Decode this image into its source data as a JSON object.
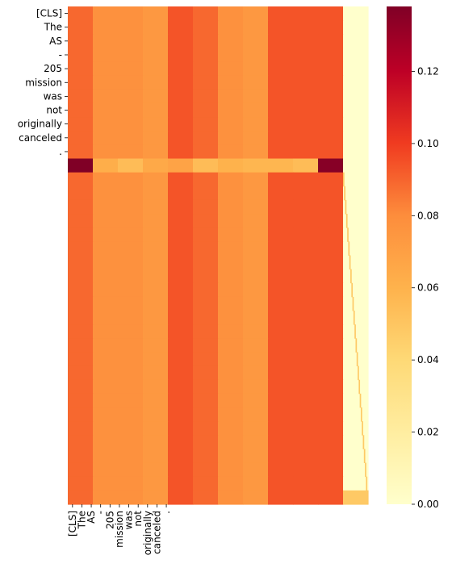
{
  "chart_data": {
    "type": "heatmap",
    "title": "",
    "xlabel": "",
    "ylabel": "",
    "row_labels": [
      "[CLS]",
      "The",
      "AS",
      "-",
      "205",
      "mission",
      "was",
      "not",
      "originally",
      "canceled",
      "."
    ],
    "col_labels": [
      "[CLS]",
      "The",
      "AS",
      "-",
      "205",
      "mission",
      "was",
      "not",
      "originally",
      "canceled",
      "."
    ],
    "n_rows": 36,
    "n_cols": 12,
    "colorbar": {
      "range": [
        0.0,
        0.138
      ],
      "ticks": [
        0.0,
        0.02,
        0.04,
        0.06,
        0.08,
        0.1,
        0.12
      ],
      "tick_labels": [
        "0.00",
        "0.02",
        "0.04",
        "0.06",
        "0.08",
        "0.10",
        "0.12"
      ],
      "colormap": "YlOrRd"
    },
    "matrix_description": {
      "rows_0_to_10_and_12_to_35_prefix_columns": [
        0.089,
        0.078,
        0.078,
        0.074,
        0.094,
        0.089,
        0.078,
        0.074,
        0.094,
        0.094,
        0.094
      ],
      "row_11_prefix_columns": [
        0.138,
        0.062,
        0.055,
        0.065,
        0.068,
        0.055,
        0.06,
        0.058,
        0.058,
        0.055,
        0.136
      ],
      "other_cells_value": 0.0,
      "diagonal_value": 0.048
    }
  }
}
